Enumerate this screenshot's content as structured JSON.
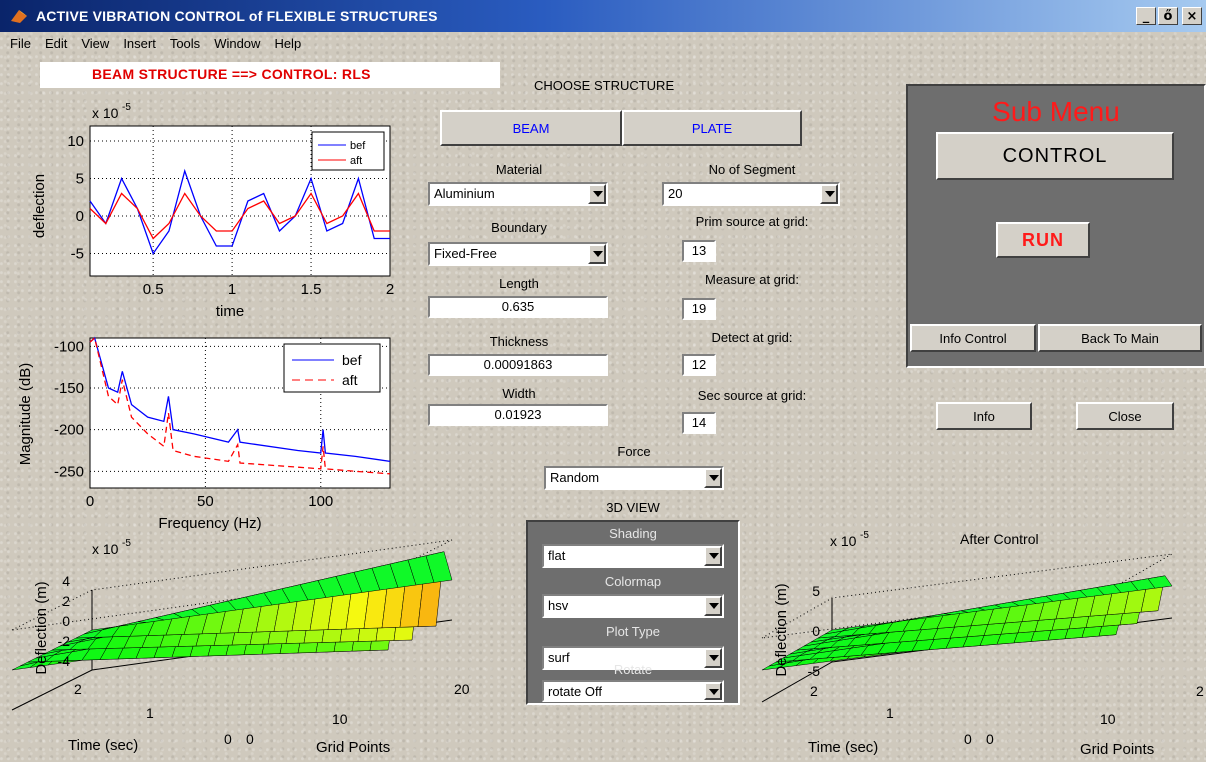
{
  "window": {
    "title": "ACTIVE VIBRATION CONTROL of FLEXIBLE STRUCTURES",
    "min": "_",
    "max": "ő",
    "close": "×"
  },
  "menu": [
    "File",
    "Edit",
    "View",
    "Insert",
    "Tools",
    "Window",
    "Help"
  ],
  "status": "BEAM STRUCTURE ==> CONTROL: RLS",
  "structure": {
    "heading": "CHOOSE STRUCTURE",
    "beam": "BEAM",
    "plate": "PLATE"
  },
  "params": {
    "material_label": "Material",
    "material": "Aluminium",
    "boundary_label": "Boundary",
    "boundary": "Fixed-Free",
    "length_label": "Length",
    "length": "0.635",
    "thickness_label": "Thickness",
    "thickness": "0.00091863",
    "width_label": "Width",
    "width": "0.01923",
    "segments_label": "No of Segment",
    "segments": "20",
    "prim_label": "Prim source at grid:",
    "prim": "13",
    "measure_label": "Measure at grid:",
    "measure": "19",
    "detect_label": "Detect at grid:",
    "detect": "12",
    "sec_label": "Sec source at grid:",
    "sec": "14",
    "force_label": "Force",
    "force": "Random"
  },
  "view3d": {
    "heading": "3D VIEW",
    "shading_label": "Shading",
    "shading": "flat",
    "colormap_label": "Colormap",
    "colormap": "hsv",
    "plottype_label": "Plot Type",
    "plottype": "surf",
    "rotate_label": "Rotate",
    "rotate": "rotate Off"
  },
  "submenu": {
    "title": "Sub Menu",
    "control": "CONTROL",
    "run": "RUN",
    "info_control": "Info Control",
    "back": "Back To Main"
  },
  "buttons": {
    "info": "Info",
    "close": "Close"
  },
  "colors": {
    "bef": "#0000ff",
    "aft": "#ff0000",
    "status_text": "#e00000",
    "submenu_title": "#ff1a1a"
  },
  "chart_data": [
    {
      "type": "line",
      "xlabel": "time",
      "ylabel": "deflection",
      "exponent": "x 10",
      "exponent_power": "-5",
      "xlim": [
        0.1,
        2.0
      ],
      "ylim": [
        -8,
        12
      ],
      "xticks": [
        "0.5",
        "1",
        "1.5",
        "2"
      ],
      "xtick_vals": [
        0.5,
        1,
        1.5,
        2
      ],
      "yticks": [
        "10",
        "5",
        "0",
        "-5"
      ],
      "ytick_vals": [
        10,
        5,
        0,
        -5
      ],
      "legend": [
        "bef",
        "aft"
      ],
      "series": [
        {
          "name": "bef",
          "x": [
            0.1,
            0.2,
            0.3,
            0.4,
            0.5,
            0.6,
            0.7,
            0.8,
            0.9,
            1.0,
            1.1,
            1.2,
            1.3,
            1.4,
            1.5,
            1.6,
            1.7,
            1.8,
            1.9,
            2.0
          ],
          "values": [
            2,
            -1,
            5,
            1,
            -5,
            -2,
            6,
            0,
            -4,
            -4,
            2,
            3,
            -2,
            0,
            5,
            -2,
            -1,
            5,
            -3,
            -3
          ]
        },
        {
          "name": "aft",
          "x": [
            0.1,
            0.2,
            0.3,
            0.4,
            0.5,
            0.6,
            0.7,
            0.8,
            0.9,
            1.0,
            1.1,
            1.2,
            1.3,
            1.4,
            1.5,
            1.6,
            1.7,
            1.8,
            1.9,
            2.0
          ],
          "values": [
            1,
            -1,
            3,
            1,
            -3,
            -1,
            3,
            0,
            -2,
            -2,
            1,
            2,
            -1,
            0,
            3,
            -1,
            0,
            3,
            -2,
            -2
          ]
        }
      ]
    },
    {
      "type": "line",
      "xlabel": "Frequency (Hz)",
      "ylabel": "Magnitude (dB)",
      "xlim": [
        0,
        130
      ],
      "ylim": [
        -270,
        -90
      ],
      "xticks": [
        "0",
        "50",
        "100"
      ],
      "xtick_vals": [
        0,
        50,
        100
      ],
      "yticks": [
        "-100",
        "-150",
        "-200",
        "-250"
      ],
      "ytick_vals": [
        -100,
        -150,
        -200,
        -250
      ],
      "legend": [
        "bef",
        "aft"
      ],
      "series": [
        {
          "name": "bef",
          "x": [
            0,
            2,
            5,
            8,
            12,
            14,
            18,
            25,
            32,
            34,
            36,
            45,
            60,
            64,
            65,
            70,
            90,
            100,
            101,
            102,
            115,
            130
          ],
          "values": [
            -95,
            -90,
            -120,
            -150,
            -155,
            -130,
            -170,
            -185,
            -190,
            -160,
            -200,
            -205,
            -215,
            -200,
            -215,
            -217,
            -225,
            -228,
            -200,
            -228,
            -232,
            -238
          ]
        },
        {
          "name": "aft",
          "x": [
            0,
            2,
            5,
            8,
            12,
            14,
            18,
            25,
            32,
            34,
            36,
            45,
            60,
            64,
            65,
            70,
            90,
            100,
            101,
            102,
            115,
            130
          ],
          "values": [
            -95,
            -90,
            -125,
            -160,
            -170,
            -140,
            -185,
            -205,
            -220,
            -180,
            -225,
            -232,
            -238,
            -218,
            -240,
            -241,
            -245,
            -247,
            -220,
            -247,
            -250,
            -253
          ]
        }
      ]
    },
    {
      "type": "surface",
      "title": "",
      "exponent": "x 10",
      "exponent_power": "-5",
      "zlabel": "Deflection (m)",
      "xlabel": "Time (sec)",
      "ylabel": "Grid Points",
      "zticks": [
        "4",
        "2",
        "0",
        "-2",
        "-4"
      ],
      "zlim": [
        -4,
        4
      ],
      "time_ticks": [
        "2",
        "1",
        "0"
      ],
      "grid_ticks": [
        "0",
        "10",
        "20"
      ]
    },
    {
      "type": "surface",
      "title": "After Control",
      "exponent": "x 10",
      "exponent_power": "-5",
      "zlabel": "Deflection (m)",
      "xlabel": "Time (sec)",
      "ylabel": "Grid Points",
      "zticks": [
        "5",
        "0",
        "-5"
      ],
      "zlim": [
        -5,
        5
      ],
      "time_ticks": [
        "2",
        "1",
        "0"
      ],
      "grid_ticks": [
        "0",
        "10",
        "2"
      ]
    }
  ]
}
